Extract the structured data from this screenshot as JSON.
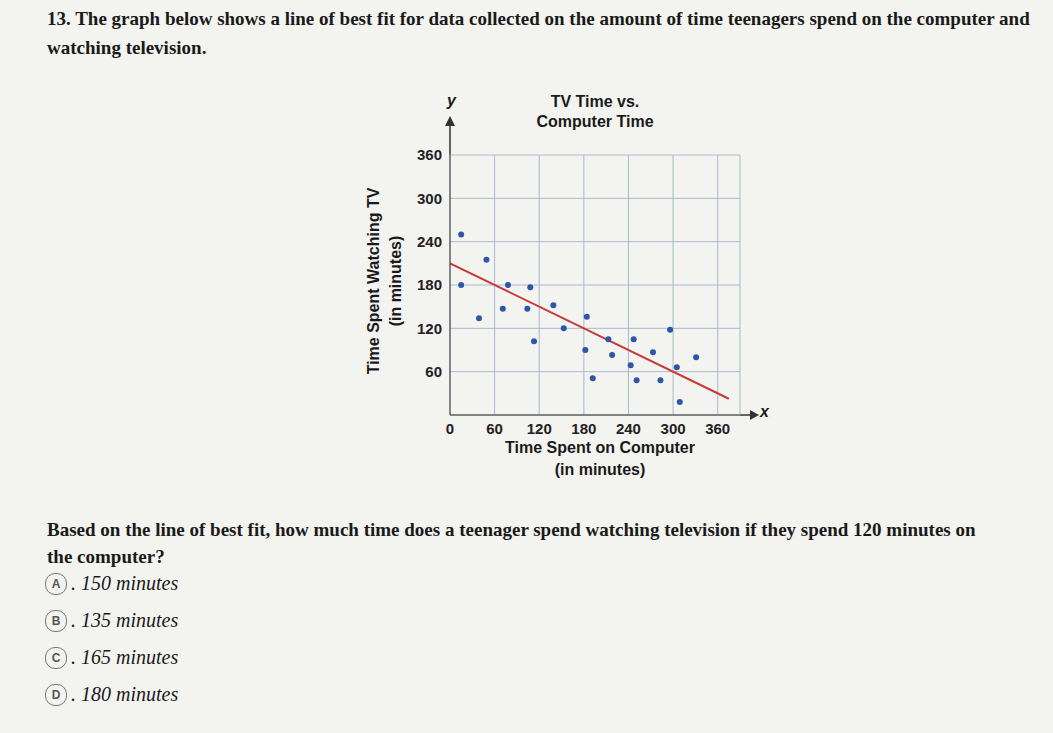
{
  "question_number": "13.",
  "intro": "The graph below shows a line of best fit for data collected on the amount of time teenagers spend on the computer and watching television.",
  "chart_data": {
    "type": "scatter",
    "title": "TV Time vs. Computer Time",
    "xlabel": [
      "Time Spent on Computer",
      "(in minutes)"
    ],
    "ylabel": [
      "Time Spent Watching TV",
      "(in minutes)"
    ],
    "axis_letters": {
      "x": "x",
      "y": "y"
    },
    "xlim": [
      0,
      390
    ],
    "xticks": [
      0,
      60,
      120,
      180,
      240,
      300,
      360
    ],
    "ylim": [
      0,
      360
    ],
    "yticks": [
      60,
      120,
      180,
      240,
      300,
      360
    ],
    "grid": true,
    "series": [
      {
        "type": "scatter",
        "marker": "circle",
        "color": "#2f55a8",
        "x": [
          15,
          49,
          15,
          78,
          108,
          71,
          104,
          139,
          39,
          184,
          153,
          113,
          213,
          247,
          296,
          182,
          218,
          273,
          243,
          305,
          331,
          192,
          251,
          283,
          309
        ],
        "values": [
          250,
          215,
          180,
          180,
          177,
          147,
          147,
          152,
          134,
          136,
          120,
          102,
          105,
          105,
          118,
          90,
          83,
          87,
          69,
          66,
          80,
          51,
          48,
          48,
          18
        ]
      },
      {
        "type": "line",
        "line_style": "solid",
        "color": "#c83a3a",
        "x": [
          0,
          375
        ],
        "values": [
          210,
          22.5
        ]
      }
    ]
  },
  "question": "Based on the line of best fit, how much time does a teenager spend watching television if they spend 120 minutes on the computer?",
  "choices": [
    {
      "letter": "A",
      "text": ". 150 minutes"
    },
    {
      "letter": "B",
      "text": ". 135 minutes"
    },
    {
      "letter": "C",
      "text": ". 165 minutes"
    },
    {
      "letter": "D",
      "text": ". 180 minutes"
    }
  ]
}
